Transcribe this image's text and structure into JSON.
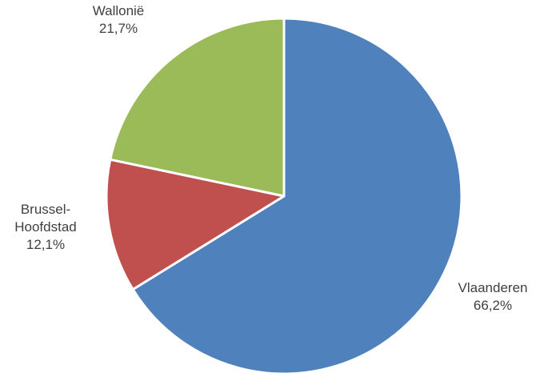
{
  "chart_data": {
    "type": "pie",
    "title": "",
    "slices": [
      {
        "name": "Vlaanderen",
        "value": 66.2,
        "label": "66,2%",
        "color": "#4F81BD",
        "label_lines": [
          "Vlaanderen"
        ]
      },
      {
        "name": "Brussel-Hoofdstad",
        "value": 12.1,
        "label": "12,1%",
        "color": "#C0504D",
        "label_lines": [
          "Brussel-",
          "Hoofdstad"
        ]
      },
      {
        "name": "Wallonië",
        "value": 21.7,
        "label": "21,7%",
        "color": "#9BBB59",
        "label_lines": [
          "Wallonië"
        ]
      }
    ],
    "start_angle_deg": 0,
    "direction": "clockwise",
    "legend": "none",
    "label_placement": "outside-end"
  }
}
